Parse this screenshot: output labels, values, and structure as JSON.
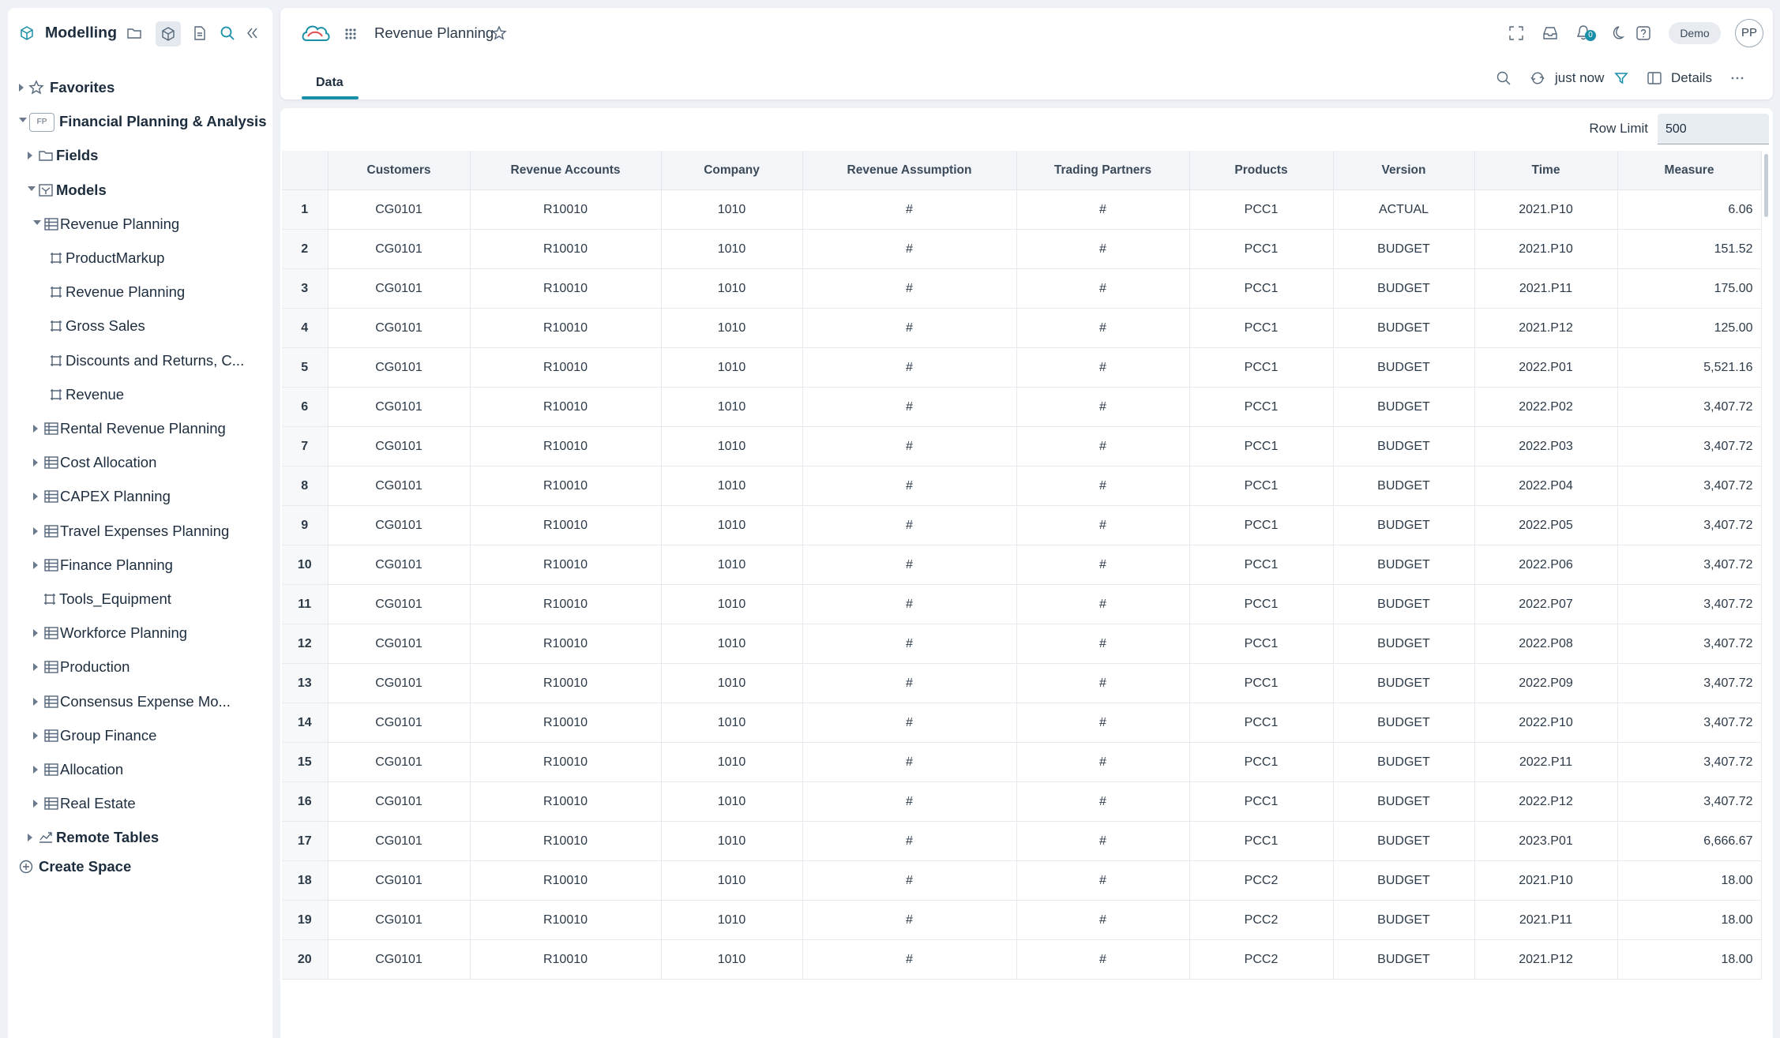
{
  "sidebar": {
    "title": "Modelling",
    "space_badge": "FP",
    "tree": [
      "Favorites",
      "Financial Planning & Analysis",
      "Fields",
      "Models",
      "Revenue Planning",
      "ProductMarkup",
      "Revenue Planning",
      "Gross Sales",
      "Discounts and Returns, C...",
      "Revenue",
      "Rental Revenue Planning",
      "Cost Allocation",
      "CAPEX Planning",
      "Travel Expenses Planning",
      "Finance Planning",
      "Tools_Equipment",
      "Workforce Planning",
      "Production",
      "Consensus Expense Mo...",
      "Group Finance",
      "Allocation",
      "Real Estate",
      "Remote Tables",
      "Create Space"
    ]
  },
  "header": {
    "title": "Revenue Planning",
    "notification_count": "0",
    "workspace": "Demo",
    "avatar": "PP"
  },
  "tabs": [
    "Data"
  ],
  "toolbar": {
    "refresh_status": "just now",
    "details": "Details"
  },
  "row_limit": {
    "label": "Row Limit",
    "value": "500"
  },
  "table": {
    "columns": [
      "Customers",
      "Revenue Accounts",
      "Company",
      "Revenue Assumption",
      "Trading Partners",
      "Products",
      "Version",
      "Time",
      "Measure"
    ],
    "rows": [
      [
        "1",
        "CG0101",
        "R10010",
        "1010",
        "#",
        "#",
        "PCC1",
        "ACTUAL",
        "2021.P10",
        "6.06"
      ],
      [
        "2",
        "CG0101",
        "R10010",
        "1010",
        "#",
        "#",
        "PCC1",
        "BUDGET",
        "2021.P10",
        "151.52"
      ],
      [
        "3",
        "CG0101",
        "R10010",
        "1010",
        "#",
        "#",
        "PCC1",
        "BUDGET",
        "2021.P11",
        "175.00"
      ],
      [
        "4",
        "CG0101",
        "R10010",
        "1010",
        "#",
        "#",
        "PCC1",
        "BUDGET",
        "2021.P12",
        "125.00"
      ],
      [
        "5",
        "CG0101",
        "R10010",
        "1010",
        "#",
        "#",
        "PCC1",
        "BUDGET",
        "2022.P01",
        "5,521.16"
      ],
      [
        "6",
        "CG0101",
        "R10010",
        "1010",
        "#",
        "#",
        "PCC1",
        "BUDGET",
        "2022.P02",
        "3,407.72"
      ],
      [
        "7",
        "CG0101",
        "R10010",
        "1010",
        "#",
        "#",
        "PCC1",
        "BUDGET",
        "2022.P03",
        "3,407.72"
      ],
      [
        "8",
        "CG0101",
        "R10010",
        "1010",
        "#",
        "#",
        "PCC1",
        "BUDGET",
        "2022.P04",
        "3,407.72"
      ],
      [
        "9",
        "CG0101",
        "R10010",
        "1010",
        "#",
        "#",
        "PCC1",
        "BUDGET",
        "2022.P05",
        "3,407.72"
      ],
      [
        "10",
        "CG0101",
        "R10010",
        "1010",
        "#",
        "#",
        "PCC1",
        "BUDGET",
        "2022.P06",
        "3,407.72"
      ],
      [
        "11",
        "CG0101",
        "R10010",
        "1010",
        "#",
        "#",
        "PCC1",
        "BUDGET",
        "2022.P07",
        "3,407.72"
      ],
      [
        "12",
        "CG0101",
        "R10010",
        "1010",
        "#",
        "#",
        "PCC1",
        "BUDGET",
        "2022.P08",
        "3,407.72"
      ],
      [
        "13",
        "CG0101",
        "R10010",
        "1010",
        "#",
        "#",
        "PCC1",
        "BUDGET",
        "2022.P09",
        "3,407.72"
      ],
      [
        "14",
        "CG0101",
        "R10010",
        "1010",
        "#",
        "#",
        "PCC1",
        "BUDGET",
        "2022.P10",
        "3,407.72"
      ],
      [
        "15",
        "CG0101",
        "R10010",
        "1010",
        "#",
        "#",
        "PCC1",
        "BUDGET",
        "2022.P11",
        "3,407.72"
      ],
      [
        "16",
        "CG0101",
        "R10010",
        "1010",
        "#",
        "#",
        "PCC1",
        "BUDGET",
        "2022.P12",
        "3,407.72"
      ],
      [
        "17",
        "CG0101",
        "R10010",
        "1010",
        "#",
        "#",
        "PCC1",
        "BUDGET",
        "2023.P01",
        "6,666.67"
      ],
      [
        "18",
        "CG0101",
        "R10010",
        "1010",
        "#",
        "#",
        "PCC2",
        "BUDGET",
        "2021.P10",
        "18.00"
      ],
      [
        "19",
        "CG0101",
        "R10010",
        "1010",
        "#",
        "#",
        "PCC2",
        "BUDGET",
        "2021.P11",
        "18.00"
      ],
      [
        "20",
        "CG0101",
        "R10010",
        "1010",
        "#",
        "#",
        "PCC2",
        "BUDGET",
        "2021.P12",
        "18.00"
      ]
    ]
  }
}
